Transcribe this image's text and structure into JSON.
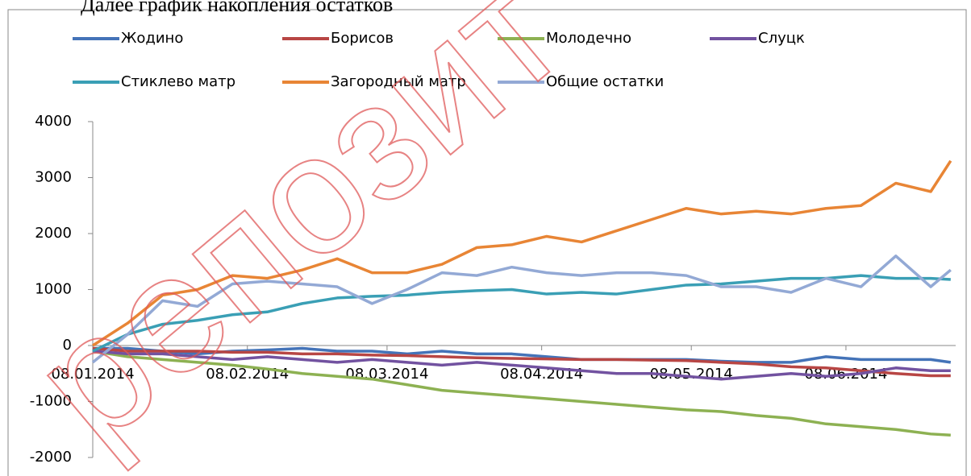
{
  "caption": "Далее график накопления остатков",
  "watermark": "репозит",
  "chart_data": {
    "type": "line",
    "x": [
      0,
      7,
      14,
      21,
      28,
      35,
      42,
      49,
      56,
      63,
      70,
      77,
      84,
      91,
      98,
      105,
      112,
      119,
      126,
      133,
      140,
      147,
      154,
      161,
      168,
      172
    ],
    "xlim": [
      0,
      173
    ],
    "xticks": [
      {
        "value": 0,
        "label": "08.01.2014"
      },
      {
        "value": 31,
        "label": "08.02.2014"
      },
      {
        "value": 59,
        "label": "08.03.2014"
      },
      {
        "value": 90,
        "label": "08.04.2014"
      },
      {
        "value": 120,
        "label": "08.05.2014"
      },
      {
        "value": 151,
        "label": "08.06.2014"
      }
    ],
    "ylim": [
      -2000,
      4000
    ],
    "yticks": [
      -2000,
      -1000,
      0,
      1000,
      2000,
      3000,
      4000
    ],
    "grid": false,
    "legend": "top",
    "series": [
      {
        "name": "Жодино",
        "color": "#4473b8",
        "values": [
          -50,
          -50,
          -100,
          -150,
          -100,
          -80,
          -50,
          -100,
          -100,
          -150,
          -100,
          -150,
          -150,
          -200,
          -250,
          -250,
          -250,
          -250,
          -280,
          -300,
          -300,
          -200,
          -250,
          -250,
          -250,
          -300
        ]
      },
      {
        "name": "Борисов",
        "color": "#b84644",
        "values": [
          -50,
          -100,
          -100,
          -100,
          -120,
          -120,
          -150,
          -150,
          -170,
          -180,
          -200,
          -220,
          -230,
          -240,
          -250,
          -250,
          -260,
          -270,
          -300,
          -330,
          -380,
          -400,
          -450,
          -500,
          -540,
          -540
        ]
      },
      {
        "name": "Молодечно",
        "color": "#8db152",
        "values": [
          -100,
          -200,
          -250,
          -300,
          -350,
          -420,
          -500,
          -550,
          -600,
          -700,
          -800,
          -850,
          -900,
          -950,
          -1000,
          -1050,
          -1100,
          -1150,
          -1180,
          -1250,
          -1300,
          -1400,
          -1450,
          -1500,
          -1580,
          -1600
        ]
      },
      {
        "name": "Слуцк",
        "color": "#7252a0",
        "values": [
          -100,
          -150,
          -150,
          -200,
          -250,
          -200,
          -250,
          -300,
          -250,
          -300,
          -350,
          -300,
          -350,
          -400,
          -450,
          -500,
          -500,
          -550,
          -600,
          -550,
          -500,
          -550,
          -500,
          -400,
          -450,
          -450
        ]
      },
      {
        "name": "Стиклево матр",
        "color": "#3a9fb5",
        "values": [
          -100,
          200,
          380,
          450,
          550,
          600,
          750,
          850,
          880,
          900,
          950,
          980,
          1000,
          920,
          950,
          920,
          1000,
          1080,
          1100,
          1150,
          1200,
          1200,
          1250,
          1200,
          1200,
          1180
        ]
      },
      {
        "name": "Загородный матр",
        "color": "#e88535",
        "values": [
          0,
          400,
          900,
          1000,
          1250,
          1200,
          1350,
          1550,
          1300,
          1300,
          1450,
          1750,
          1800,
          1950,
          1850,
          2050,
          2250,
          2450,
          2350,
          2400,
          2350,
          2450,
          2500,
          2900,
          2750,
          3300
        ]
      },
      {
        "name": "Общие остатки",
        "color": "#93a9d5",
        "values": [
          -300,
          200,
          800,
          700,
          1100,
          1150,
          1100,
          1050,
          750,
          1000,
          1300,
          1250,
          1400,
          1300,
          1250,
          1300,
          1300,
          1250,
          1050,
          1050,
          950,
          1200,
          1050,
          1600,
          1050,
          1350
        ]
      }
    ]
  }
}
